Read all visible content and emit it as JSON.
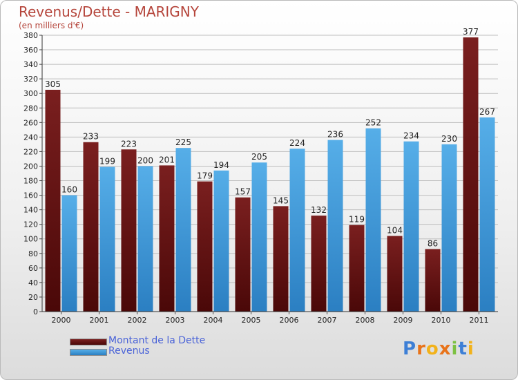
{
  "title": "Revenus/Dette - MARIGNY",
  "subtitle": "(en milliers d'€)",
  "colors": {
    "dette": "#7a1f1f",
    "dette_dark": "#4a0808",
    "revenus": "#56aee8",
    "revenus_dark": "#2b7fc2",
    "axis_text": "#222222",
    "title": "#b5453b",
    "legend_text": "#4a63d8"
  },
  "legend": {
    "dette": "Montant de la Dette",
    "revenus": "Revenus",
    "position": "bottom-left"
  },
  "logo": {
    "text": "Proxiti",
    "letter_colors": [
      "#3d7fd6",
      "#e8731a",
      "#f2b21a",
      "#e8731a",
      "#7cc142",
      "#3d7fd6",
      "#f2b21a"
    ]
  },
  "chart_data": {
    "type": "bar",
    "categories": [
      "2000",
      "2001",
      "2002",
      "2003",
      "2004",
      "2005",
      "2006",
      "2007",
      "2008",
      "2009",
      "2010",
      "2011"
    ],
    "series": [
      {
        "name": "Montant de la Dette",
        "values": [
          305,
          233,
          223,
          201,
          179,
          157,
          145,
          132,
          119,
          104,
          86,
          377
        ]
      },
      {
        "name": "Revenus",
        "values": [
          160,
          199,
          200,
          225,
          194,
          205,
          224,
          236,
          252,
          234,
          230,
          267
        ]
      }
    ],
    "ylim": [
      0,
      380
    ],
    "ytick_step": 20,
    "grid": true,
    "data_labels": true
  }
}
